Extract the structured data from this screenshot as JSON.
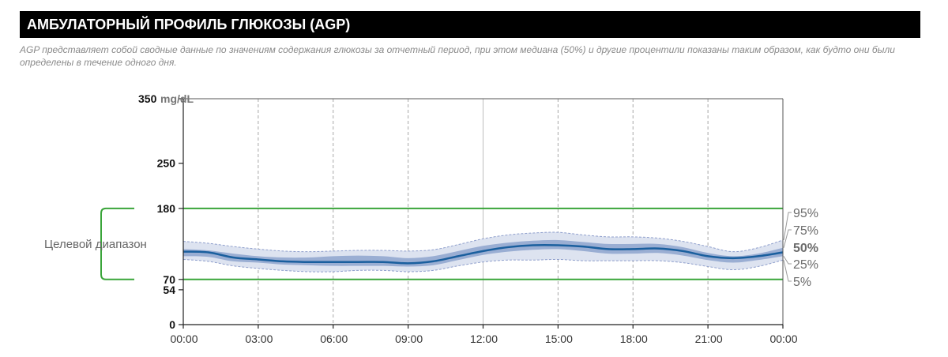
{
  "header": {
    "title": "АМБУЛАТОРНЫЙ ПРОФИЛЬ ГЛЮКОЗЫ (AGP)"
  },
  "description": "AGP представляет собой сводные данные по значениям содержания глюкозы за отчетный период, при этом медиана (50%) и другие процентили показаны таким образом, как будто они были определены в течение одного дня.",
  "colors": {
    "median": "#1a5f9e",
    "iqr_band": "#9aaed3",
    "outer_band": "#dde3f0",
    "outer_band_edge": "#8f9fcc",
    "target_lines": "#3aa53a",
    "grid": "#a8a8a8",
    "label_median": "#1a5f9e"
  },
  "chart_data": {
    "type": "area",
    "title": "",
    "xlabel": "",
    "ylabel": "mg/dL",
    "y_unit": "mg/dL",
    "ylim": [
      0,
      350
    ],
    "y_ticks": [
      {
        "value": 350,
        "label": "350"
      },
      {
        "value": 250,
        "label": "250"
      },
      {
        "value": 180,
        "label": "180"
      },
      {
        "value": 70,
        "label": "70"
      },
      {
        "value": 54,
        "label": "54"
      },
      {
        "value": 0,
        "label": "0"
      }
    ],
    "x_ticks": [
      "00:00",
      "03:00",
      "06:00",
      "09:00",
      "12:00",
      "15:00",
      "18:00",
      "21:00",
      "00:00"
    ],
    "xlim_hours": [
      0,
      24
    ],
    "target_range": {
      "label": "Целевой диапазон",
      "low": 70,
      "high": 180
    },
    "percentile_labels": [
      {
        "name": "95%",
        "emphasis": false
      },
      {
        "name": "75%",
        "emphasis": false
      },
      {
        "name": "50%",
        "emphasis": true
      },
      {
        "name": "25%",
        "emphasis": false
      },
      {
        "name": "5%",
        "emphasis": false
      }
    ],
    "hours": [
      0,
      1,
      2,
      3,
      4,
      5,
      6,
      7,
      8,
      9,
      10,
      11,
      12,
      13,
      14,
      15,
      16,
      17,
      18,
      19,
      20,
      21,
      22,
      23,
      24
    ],
    "series": [
      {
        "name": "95%",
        "values": [
          129,
          126,
          121,
          117,
          114,
          113,
          114,
          115,
          115,
          114,
          116,
          124,
          133,
          139,
          142,
          143,
          139,
          136,
          136,
          134,
          129,
          121,
          113,
          119,
          131
        ]
      },
      {
        "name": "75%",
        "values": [
          117,
          115,
          110,
          106,
          104,
          104,
          106,
          107,
          106,
          103,
          106,
          114,
          122,
          127,
          130,
          131,
          128,
          125,
          125,
          125,
          120,
          111,
          106,
          110,
          119
        ]
      },
      {
        "name": "50%",
        "values": [
          113,
          112,
          104,
          101,
          98,
          97,
          97,
          97,
          97,
          95,
          98,
          106,
          114,
          120,
          123,
          123,
          121,
          117,
          117,
          118,
          114,
          106,
          103,
          106,
          112
        ]
      },
      {
        "name": "25%",
        "values": [
          106,
          105,
          98,
          96,
          93,
          92,
          91,
          91,
          91,
          90,
          92,
          100,
          108,
          113,
          116,
          117,
          114,
          110,
          110,
          111,
          107,
          100,
          96,
          100,
          106
        ]
      },
      {
        "name": "5%",
        "values": [
          101,
          98,
          91,
          87,
          84,
          82,
          82,
          84,
          84,
          82,
          84,
          91,
          97,
          100,
          100,
          101,
          99,
          99,
          99,
          99,
          96,
          90,
          85,
          90,
          100
        ]
      }
    ]
  }
}
